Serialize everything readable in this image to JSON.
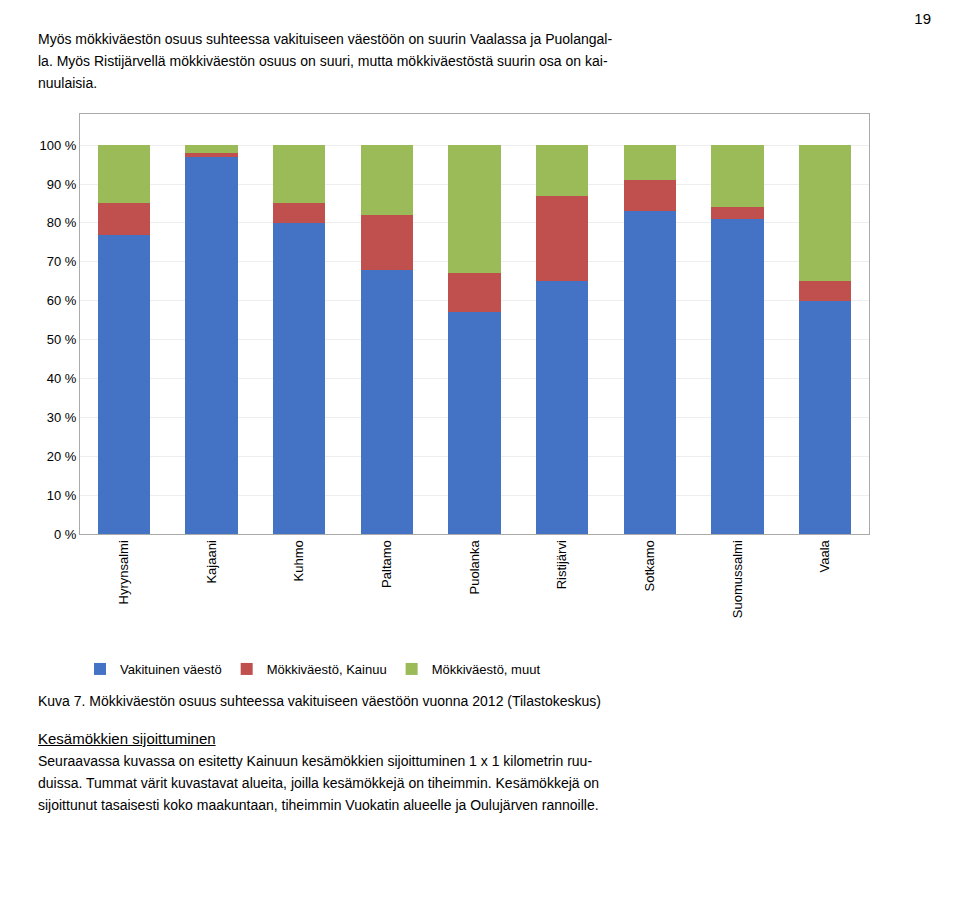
{
  "chart_data": {
    "type": "bar",
    "stacked": true,
    "categories": [
      "Hyrynsalmi",
      "Kajaani",
      "Kuhmo",
      "Paltamo",
      "Puolanka",
      "Ristijärvi",
      "Sotkamo",
      "Suomussalmi",
      "Vaala"
    ],
    "series": [
      {
        "name": "Vakituinen väestö",
        "color": "#4472C4",
        "values": [
          77,
          97,
          80,
          68,
          57,
          65,
          83,
          81,
          60
        ]
      },
      {
        "name": "Mökkiväestö, Kainuu",
        "color": "#C0504D",
        "values": [
          8,
          1,
          5,
          14,
          10,
          22,
          8,
          3,
          5
        ]
      },
      {
        "name": "Mökkiväestö, muut",
        "color": "#9BBB59",
        "values": [
          15,
          2,
          15,
          18,
          33,
          13,
          9,
          16,
          35
        ]
      }
    ],
    "ylim": [
      0,
      108
    ],
    "yticks": [
      {
        "value": 0,
        "label": "0 %"
      },
      {
        "value": 10,
        "label": "10 %"
      },
      {
        "value": 20,
        "label": "20 %"
      },
      {
        "value": 30,
        "label": "30 %"
      },
      {
        "value": 40,
        "label": "40 %"
      },
      {
        "value": 50,
        "label": "50 %"
      },
      {
        "value": 60,
        "label": "60 %"
      },
      {
        "value": 70,
        "label": "70 %"
      },
      {
        "value": 80,
        "label": "80 %"
      },
      {
        "value": 90,
        "label": "90 %"
      },
      {
        "value": 100,
        "label": "100 %"
      }
    ],
    "grid": true,
    "legend": "bottom",
    "annotations": [
      "19",
      "Myös mökkiväestön osuus suhteessa vakituiseen väestöön on suurin Vaalassa ja Puolangal-",
      "la. Myös Ristijärvellä mökkiväestön osuus on suuri, mutta mökkiväestöstä suurin osa on kai-",
      "nuulaisia.",
      "Kuva 7. Mökkiväestön osuus suhteessa vakituiseen väestöön vuonna 2012 (Tilastokeskus)",
      "Kesämökkien sijoittuminen",
      "Seuraavassa kuvassa on esitetty Kainuun kesämökkien sijoittuminen 1 x 1 kilometrin ruu-",
      "duissa. Tummat värit kuvastavat alueita, joilla kesämökkejä on tiheimmin. Kesämökkejä on",
      "sijoittunut tasaisesti koko maakuntaan, tiheimmin Vuokatin alueelle ja Oulujärven rannoille."
    ]
  }
}
